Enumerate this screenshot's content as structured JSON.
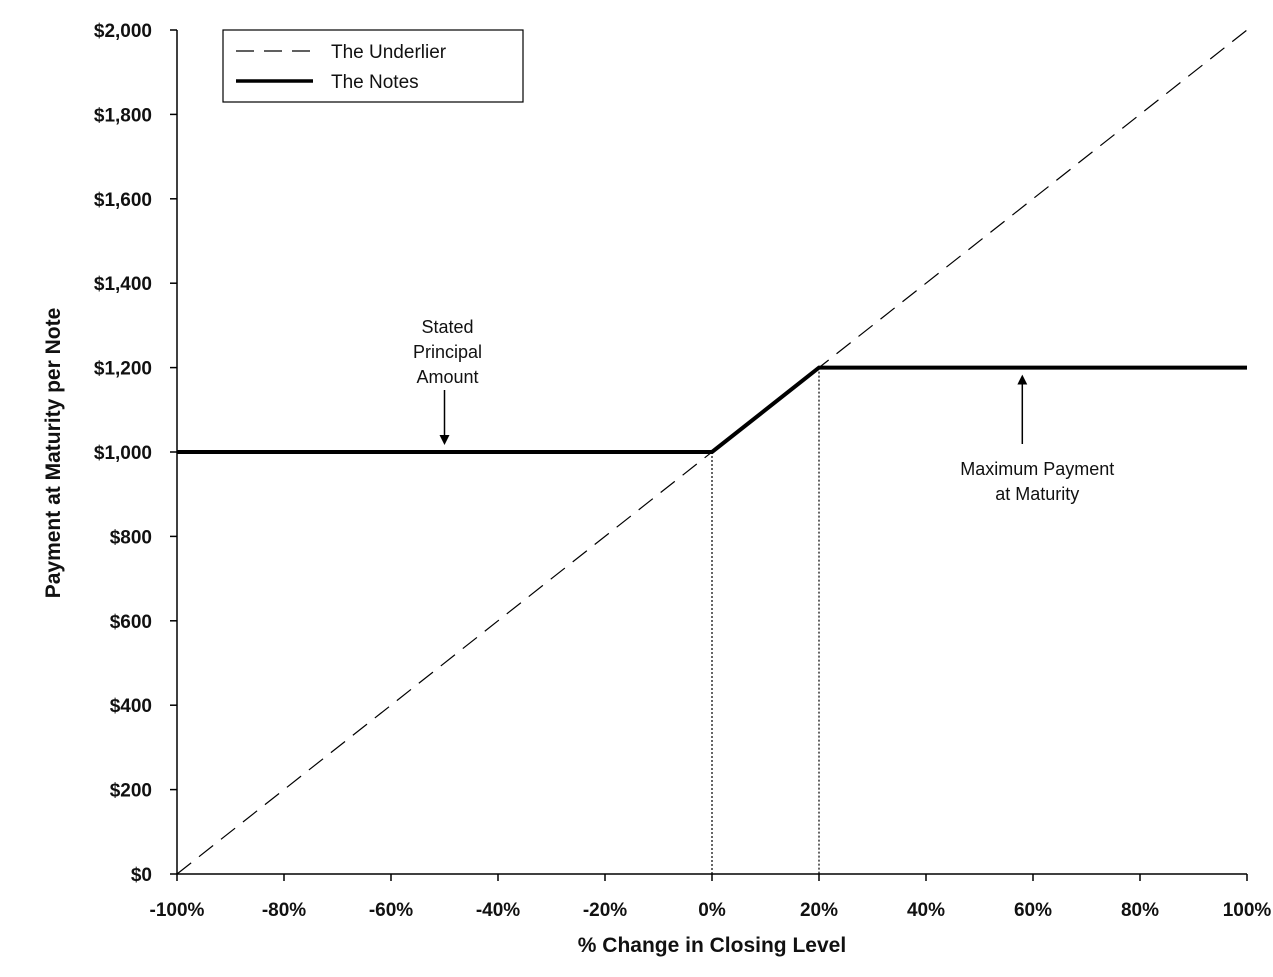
{
  "chart_data": {
    "type": "line",
    "title": "",
    "xlabel": "% Change in Closing Level",
    "ylabel": "Payment at Maturity per Note",
    "xlim": [
      -100,
      100
    ],
    "ylim": [
      0,
      2000
    ],
    "x_ticks": [
      -100,
      -80,
      -60,
      -40,
      -20,
      0,
      20,
      40,
      60,
      80,
      100
    ],
    "x_tick_labels": [
      "-100%",
      "-80%",
      "-60%",
      "-40%",
      "-20%",
      "0%",
      "20%",
      "40%",
      "60%",
      "80%",
      "100%"
    ],
    "y_ticks": [
      0,
      200,
      400,
      600,
      800,
      1000,
      1200,
      1400,
      1600,
      1800,
      2000
    ],
    "y_tick_labels": [
      "$0",
      "$200",
      "$400",
      "$600",
      "$800",
      "$1,000",
      "$1,200",
      "$1,400",
      "$1,600",
      "$1,800",
      "$2,000"
    ],
    "grid": false,
    "legend_position": "top-left",
    "series": [
      {
        "name": "The Underlier",
        "style": "dashed",
        "color": "#000000",
        "points": [
          [
            -100,
            0
          ],
          [
            100,
            2000
          ]
        ]
      },
      {
        "name": "The Notes",
        "style": "solid-thick",
        "color": "#000000",
        "points": [
          [
            -100,
            1000
          ],
          [
            0,
            1000
          ],
          [
            20,
            1200
          ],
          [
            100,
            1200
          ]
        ]
      }
    ],
    "reference_lines": [
      {
        "x": 0,
        "y": 1000,
        "style": "dotted"
      },
      {
        "x": 20,
        "y": 1200,
        "style": "dotted"
      }
    ],
    "annotations": [
      {
        "lines": [
          "Stated",
          "Principal",
          "Amount"
        ],
        "x": -50,
        "y": 1000,
        "arrow": "down"
      },
      {
        "lines": [
          "Maximum Payment",
          "at Maturity"
        ],
        "x": 58,
        "y": 1200,
        "arrow": "up"
      }
    ]
  }
}
